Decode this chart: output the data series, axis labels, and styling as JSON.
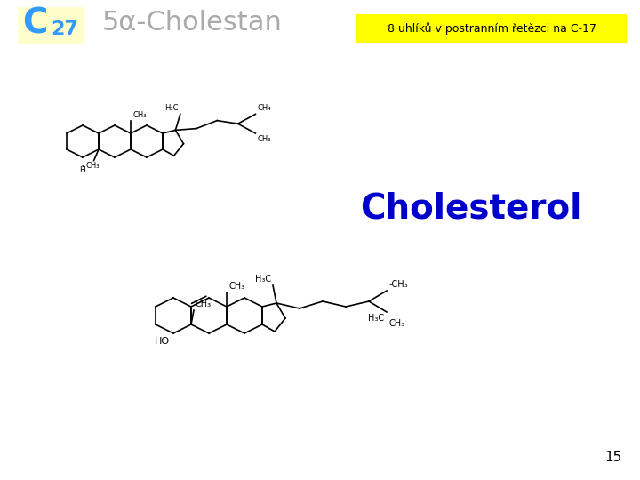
{
  "background_color": "#ffffff",
  "c27_box_color": "#ffffcc",
  "c27_color": "#3399ff",
  "title_color": "#aaaaaa",
  "highlight_box_color": "#ffff00",
  "highlight_text": "8 uhlíků v postranním řetězci na C-17",
  "cholesterol_label": "Cholesterol",
  "cholesterol_color": "#0000cc",
  "page_number": "15"
}
